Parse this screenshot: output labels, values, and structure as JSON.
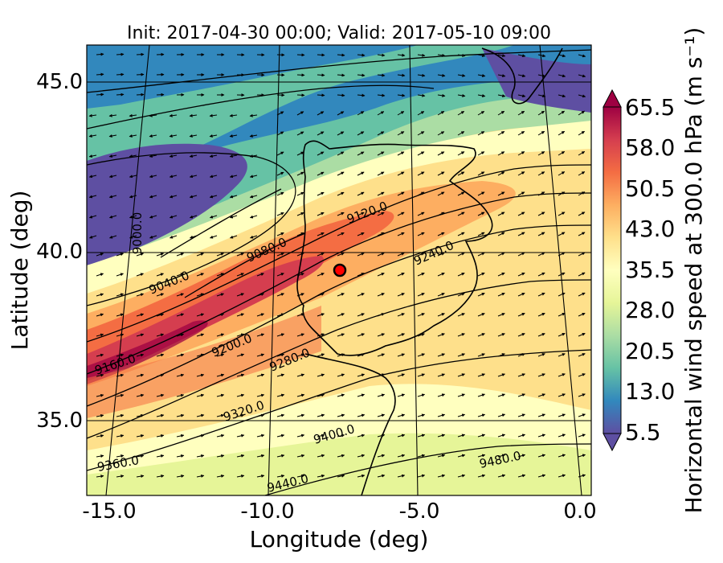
{
  "title": "Init: 2017-04-30 00:00; Valid: 2017-05-10 09:00",
  "xlabel": "Longitude (deg)",
  "ylabel": "Latitude (deg)",
  "colorbar_label": "Horizontal wind speed at 300.0 hPa (m s⁻¹)",
  "xticks": [
    "-15.0",
    "-10.0",
    "-5.0",
    "0.0"
  ],
  "yticks": [
    "45.0",
    "40.0",
    "35.0"
  ],
  "colorbar_ticks": [
    "65.5",
    "58.0",
    "50.5",
    "43.0",
    "35.5",
    "28.0",
    "20.5",
    "13.0",
    "5.5"
  ],
  "contour_labels": [
    "9000.0",
    "9040.0",
    "9080.0",
    "9120.0",
    "9160.0",
    "9200.0",
    "9240.0",
    "9280.0",
    "9320.0",
    "9360.0",
    "9400.0",
    "9440.0",
    "9480.0"
  ],
  "colormap": [
    "#5e4fa2",
    "#3288bd",
    "#66c2a5",
    "#abdda4",
    "#e6f598",
    "#ffffbf",
    "#fee08b",
    "#fdae61",
    "#f46d43",
    "#d53e4f",
    "#9e0142"
  ],
  "marker_color": "#ff0000"
}
